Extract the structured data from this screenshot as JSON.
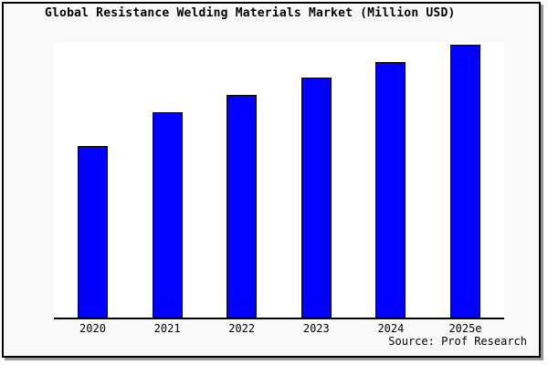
{
  "chart_data": {
    "type": "bar",
    "title": "Global Resistance Welding Materials Market (Million USD)",
    "categories": [
      "2020",
      "2021",
      "2022",
      "2023",
      "2024",
      "2025e"
    ],
    "values": [
      188,
      225,
      244,
      263,
      280,
      299
    ],
    "values_unit": "relative bar height in pixels (y-axis has no tick labels in image)",
    "xlabel": "",
    "ylabel": "",
    "legend": "none",
    "grid": false,
    "bar_color": "#0000ff",
    "bar_border_color": "#000000",
    "plot_background": "#ffffff",
    "figure_background": "#f9f9f9",
    "axis_color": "#000000"
  },
  "source_note": "Source: Prof Research"
}
